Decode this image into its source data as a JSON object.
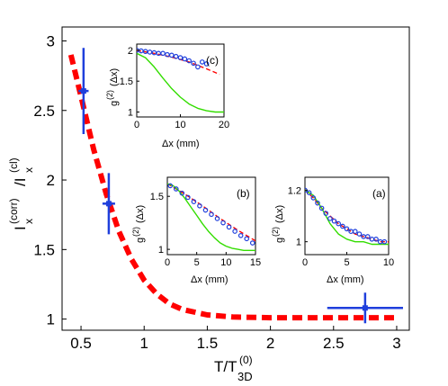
{
  "colors": {
    "theory": "#ff0000",
    "experiment": "#1f3fdc",
    "green": "#33dd00",
    "axis": "#000000",
    "background": "#ffffff"
  },
  "chart_data": [
    {
      "type": "scatter",
      "id": "main",
      "xlabel": "T/T",
      "xlabel_sub": "3D",
      "xlabel_sup": "(0)",
      "ylabel": "I",
      "ylabel_parts": [
        "I",
        "x",
        "(corr)",
        "/I",
        "x",
        "(cl)"
      ],
      "xlim": [
        0.35,
        3.1
      ],
      "ylim": [
        0.92,
        3.1
      ],
      "xticks": [
        0.5,
        1,
        1.5,
        2,
        2.5,
        3
      ],
      "xtick_labels": [
        "0.5",
        "1",
        "1.5",
        "2",
        "2.5",
        "3"
      ],
      "yticks": [
        1,
        1.5,
        2,
        2.5,
        3
      ],
      "ytick_labels": [
        "1",
        "1.5",
        "2",
        "2.5",
        "3"
      ],
      "grid": false,
      "series": [
        {
          "kind": "line",
          "style": "dashed",
          "color": "red",
          "x": [
            0.42,
            0.5,
            0.6,
            0.7,
            0.8,
            0.9,
            1.0,
            1.1,
            1.2,
            1.3,
            1.5,
            1.7,
            2.0,
            2.3,
            2.6,
            3.0
          ],
          "y": [
            2.9,
            2.6,
            2.22,
            1.9,
            1.63,
            1.43,
            1.28,
            1.18,
            1.11,
            1.07,
            1.03,
            1.015,
            1.01,
            1.01,
            1.01,
            1.01
          ]
        },
        {
          "kind": "points",
          "color": "blue",
          "x": [
            0.52,
            0.72,
            2.75
          ],
          "y": [
            2.64,
            1.83,
            1.08
          ],
          "xerr": [
            0.04,
            0.05,
            0.3
          ],
          "yerr": [
            0.31,
            0.22,
            0.11
          ]
        }
      ]
    },
    {
      "type": "scatter",
      "id": "inset-c",
      "panel_label": "(c)",
      "xlabel": "Δx (mm)",
      "ylabel": "g",
      "ylabel_sup": "(2)",
      "ylabel_tail": "(Δx)",
      "xlim": [
        0,
        20
      ],
      "ylim": [
        0.92,
        2.1
      ],
      "xticks": [
        0,
        10,
        20
      ],
      "xtick_labels": [
        "0",
        "10",
        "20"
      ],
      "yticks": [
        1,
        1.5,
        2
      ],
      "ytick_labels": [
        "1",
        "1.5",
        "2"
      ],
      "series": [
        {
          "kind": "line",
          "style": "dashed",
          "color": "red",
          "x": [
            0,
            4,
            8,
            12,
            16,
            19
          ],
          "y": [
            2.0,
            1.95,
            1.89,
            1.81,
            1.7,
            1.61
          ]
        },
        {
          "kind": "line",
          "style": "solid",
          "color": "green",
          "x": [
            0,
            2,
            4,
            6,
            8,
            10,
            12,
            14,
            16,
            18,
            20
          ],
          "y": [
            1.95,
            1.88,
            1.73,
            1.55,
            1.38,
            1.24,
            1.13,
            1.06,
            1.02,
            1.0,
            1.0
          ]
        },
        {
          "kind": "points",
          "color": "blue",
          "x": [
            0,
            1,
            2,
            3,
            4,
            5,
            6,
            7,
            8,
            9,
            10,
            11,
            12,
            13,
            14,
            15,
            16
          ],
          "y": [
            2.0,
            1.99,
            1.98,
            1.97,
            1.96,
            1.95,
            1.95,
            1.93,
            1.92,
            1.9,
            1.88,
            1.86,
            1.83,
            1.79,
            1.73,
            1.81,
            1.78
          ]
        }
      ]
    },
    {
      "type": "scatter",
      "id": "inset-b",
      "panel_label": "(b)",
      "xlabel": "Δx (mm)",
      "ylabel": "g",
      "ylabel_sup": "(2)",
      "ylabel_tail": "(Δx)",
      "xlim": [
        0,
        15
      ],
      "ylim": [
        0.95,
        1.68
      ],
      "xticks": [
        0,
        5,
        10,
        15
      ],
      "xtick_labels": [
        "0",
        "5",
        "10",
        "15"
      ],
      "yticks": [
        1,
        1.5
      ],
      "ytick_labels": [
        "1",
        "1.5"
      ],
      "series": [
        {
          "kind": "line",
          "style": "dashed",
          "color": "red",
          "x": [
            0,
            3,
            6,
            9,
            12,
            15
          ],
          "y": [
            1.62,
            1.52,
            1.41,
            1.29,
            1.18,
            1.08
          ]
        },
        {
          "kind": "line",
          "style": "solid",
          "color": "green",
          "x": [
            0,
            1,
            2,
            3,
            4,
            5,
            6,
            7,
            8,
            9,
            10,
            11,
            12,
            13,
            14,
            15
          ],
          "y": [
            1.62,
            1.6,
            1.55,
            1.48,
            1.4,
            1.32,
            1.24,
            1.17,
            1.11,
            1.06,
            1.03,
            1.01,
            1.0,
            0.99,
            0.99,
            0.99
          ]
        },
        {
          "kind": "points",
          "color": "blue",
          "x": [
            0.5,
            1.5,
            2.5,
            3.5,
            4.5,
            5.5,
            6.5,
            7.5,
            8.5,
            9.5,
            10.5,
            11.5,
            12.5,
            13.5,
            14.5
          ],
          "y": [
            1.6,
            1.57,
            1.53,
            1.49,
            1.45,
            1.41,
            1.37,
            1.33,
            1.29,
            1.25,
            1.21,
            1.17,
            1.13,
            1.1,
            1.06
          ]
        }
      ]
    },
    {
      "type": "scatter",
      "id": "inset-a",
      "panel_label": "(a)",
      "xlabel": "Δx (mm)",
      "ylabel": "g",
      "ylabel_sup": "(2)",
      "ylabel_tail": "(Δx)",
      "xlim": [
        0,
        10
      ],
      "ylim": [
        0.95,
        1.25
      ],
      "xticks": [
        0,
        5,
        10
      ],
      "xtick_labels": [
        "0",
        "5",
        "10"
      ],
      "yticks": [
        1,
        1.2
      ],
      "ytick_labels": [
        "1",
        "1.2"
      ],
      "series": [
        {
          "kind": "line",
          "style": "dashed",
          "color": "red",
          "x": [
            0,
            1,
            2,
            3,
            4,
            5,
            6,
            7,
            8,
            9,
            10
          ],
          "y": [
            1.2,
            1.17,
            1.13,
            1.1,
            1.07,
            1.05,
            1.03,
            1.02,
            1.01,
            1.0,
            1.0
          ]
        },
        {
          "kind": "line",
          "style": "solid",
          "color": "green",
          "x": [
            0,
            1,
            2,
            3,
            4,
            5,
            6,
            7,
            8,
            9,
            10
          ],
          "y": [
            1.2,
            1.18,
            1.13,
            1.07,
            1.03,
            1.01,
            1.0,
            1.0,
            0.99,
            0.99,
            0.99
          ]
        },
        {
          "kind": "points",
          "color": "blue",
          "x": [
            0,
            0.5,
            1,
            1.5,
            2,
            2.5,
            3,
            3.5,
            4,
            4.5,
            5,
            5.5,
            6,
            6.5,
            7,
            7.5,
            8,
            8.5,
            9,
            9.5
          ],
          "y": [
            1.2,
            1.19,
            1.17,
            1.15,
            1.13,
            1.11,
            1.09,
            1.08,
            1.07,
            1.06,
            1.05,
            1.04,
            1.04,
            1.03,
            1.02,
            1.02,
            1.01,
            1.01,
            1.0,
            1.0
          ]
        }
      ]
    }
  ]
}
